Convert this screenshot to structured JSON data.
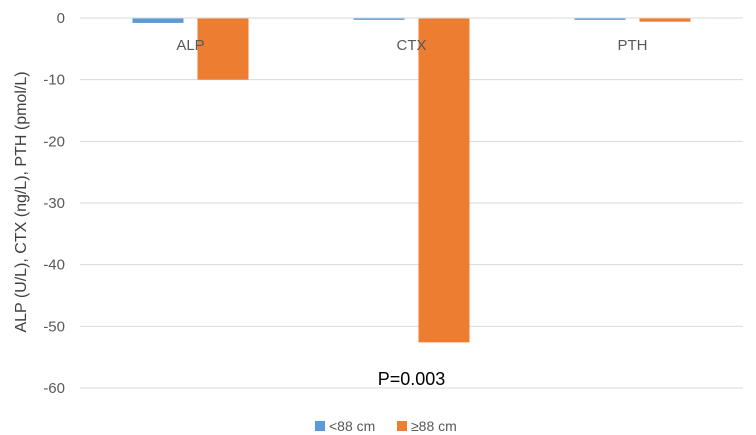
{
  "chart_data": {
    "type": "bar",
    "title": "",
    "xlabel": "",
    "ylabel": "ALP (U/L), CTX (ng/L), PTH (pmol/L)",
    "categories": [
      "ALP",
      "CTX",
      "PTH"
    ],
    "series": [
      {
        "name": "<88 cm",
        "color": "#5B9BD5",
        "values": [
          -0.8,
          -0.3,
          -0.3
        ]
      },
      {
        "name": "≥88 cm",
        "color": "#ED7D31",
        "values": [
          -10,
          -52.6,
          -0.6
        ]
      }
    ],
    "ylim": [
      -60,
      0
    ],
    "yticks": [
      0,
      -10,
      -20,
      -30,
      -40,
      -50,
      -60
    ],
    "grid": true,
    "legend_position": "bottom",
    "annotations": [
      {
        "text": "P=0.003",
        "category": "CTX",
        "y": -58.5
      }
    ]
  }
}
